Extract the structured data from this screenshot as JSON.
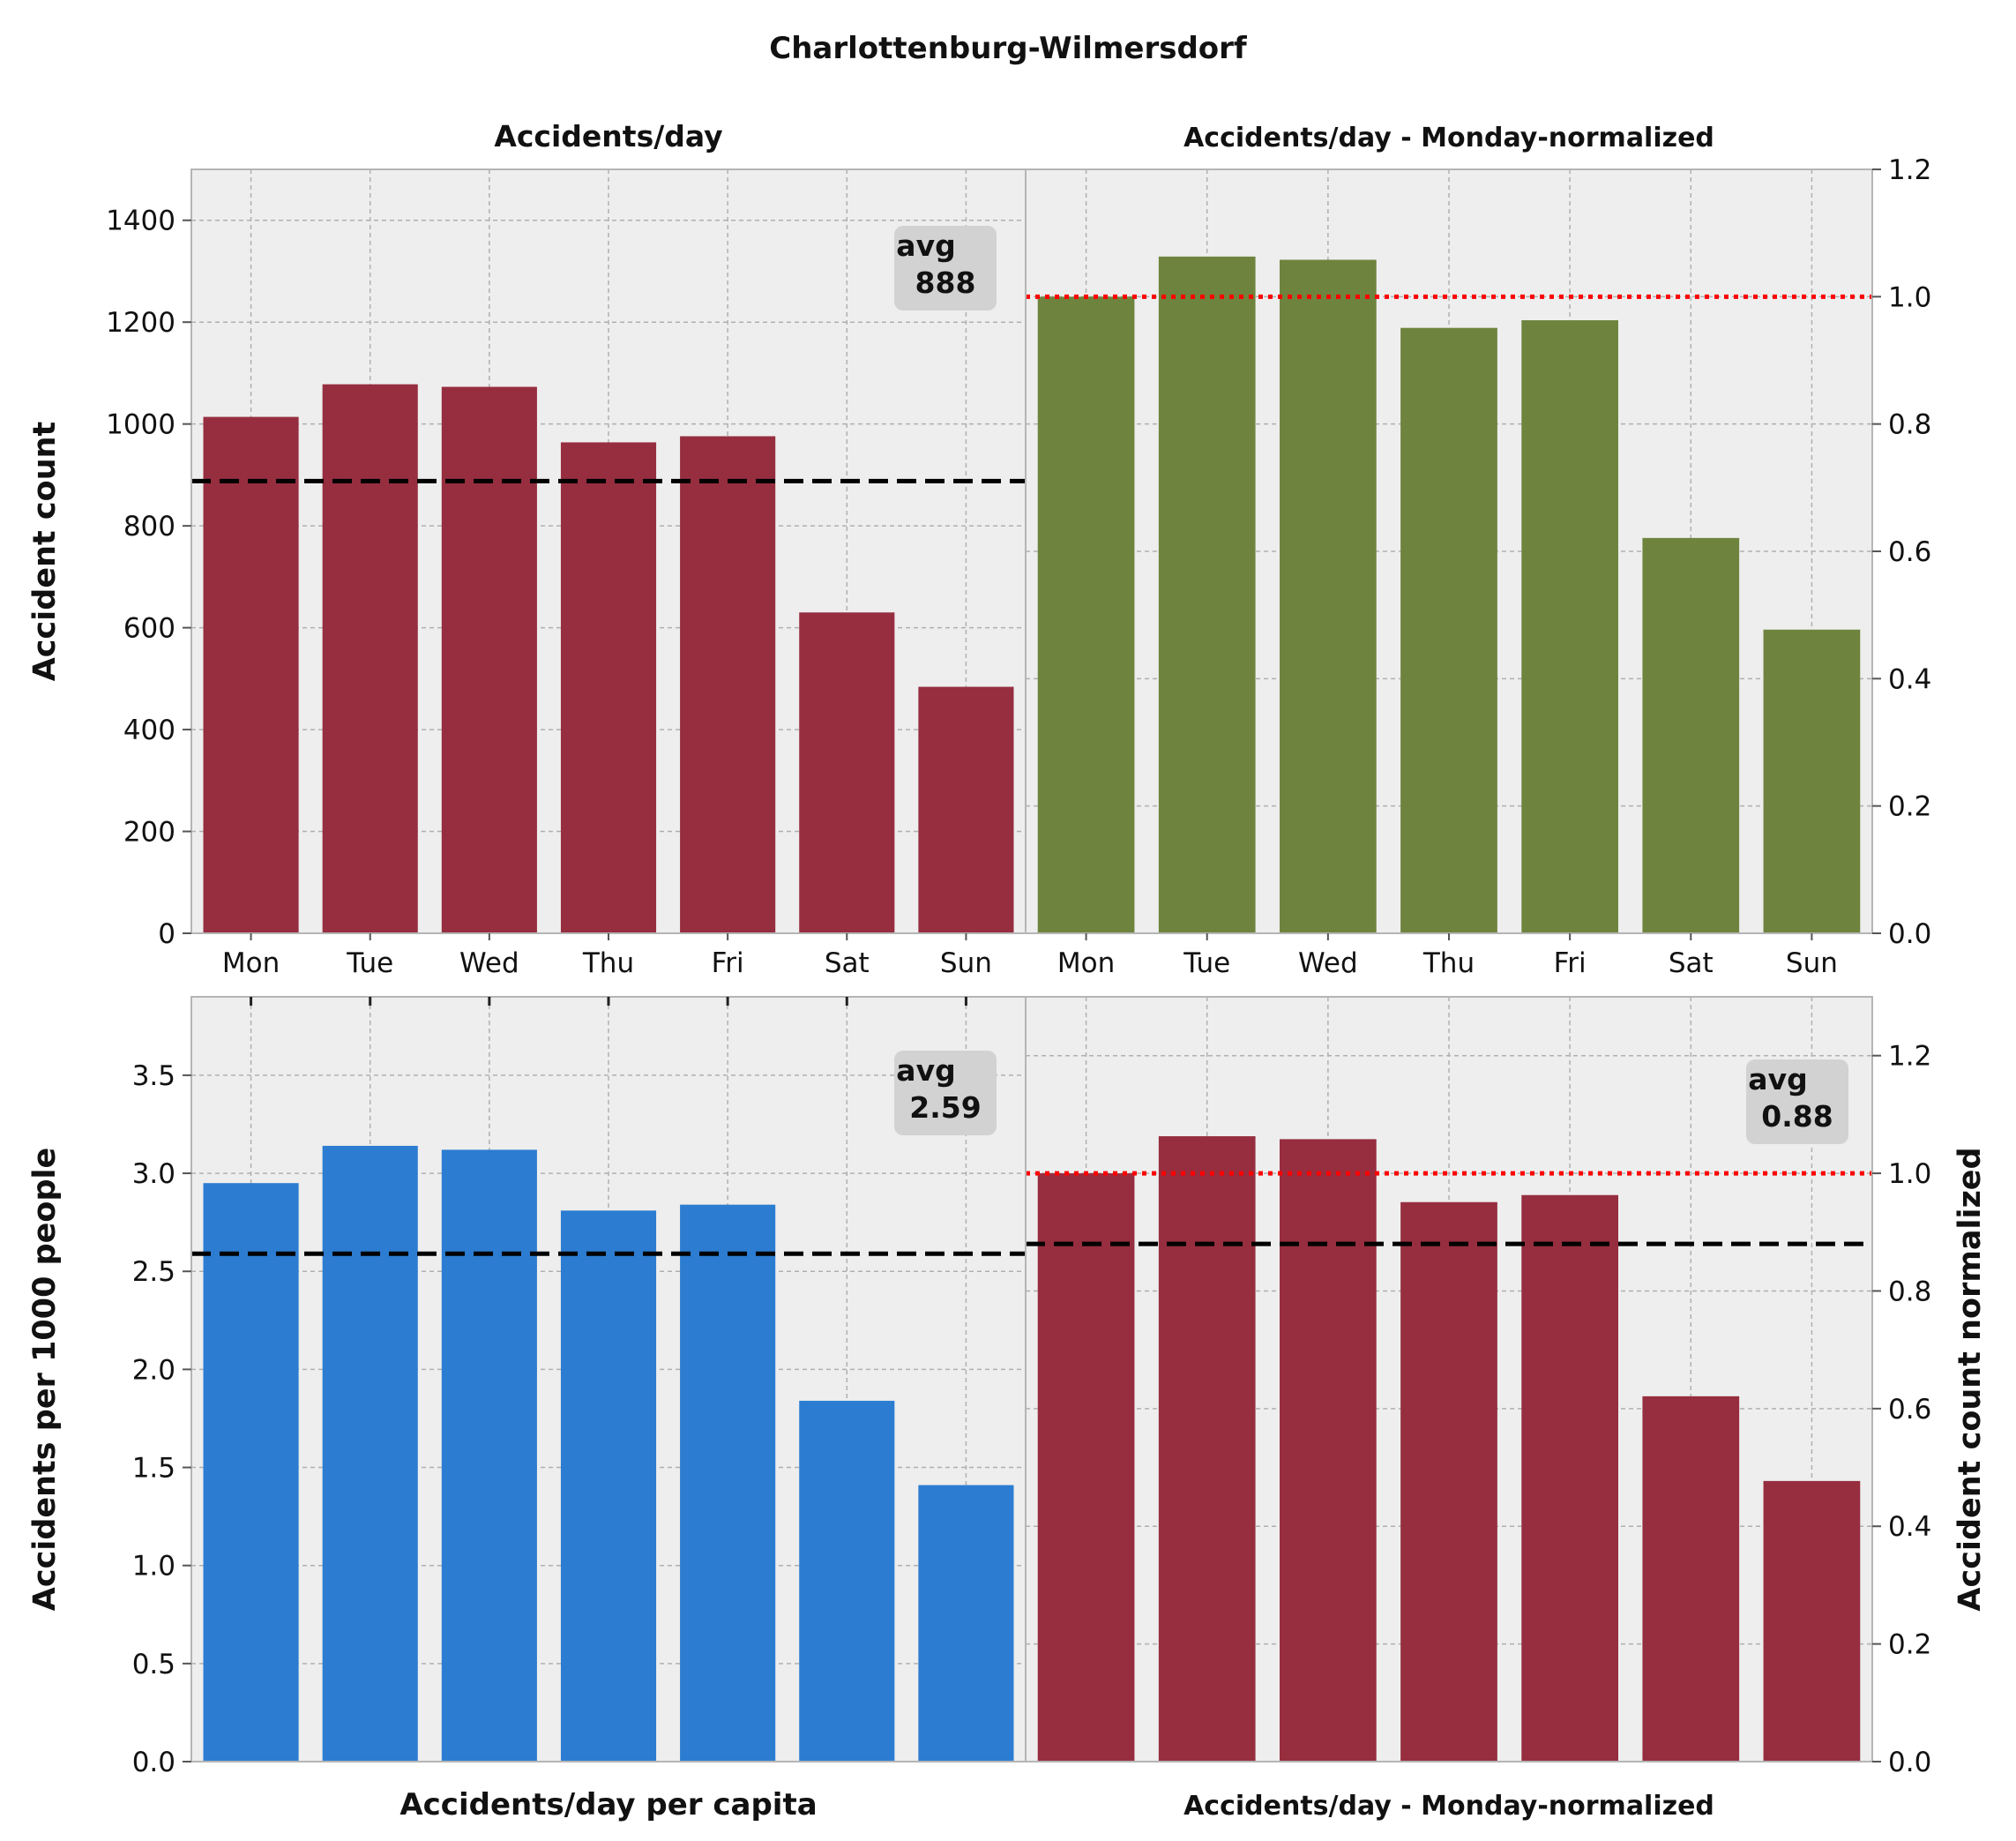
{
  "figure_title": "Charlottenburg-Wilmersdorf",
  "colors": {
    "panel_bg": "#eeeeee",
    "grid": "#b0b0b0",
    "maroon": "#962e3f",
    "olive": "#6e843e",
    "blue": "#2c7dd1",
    "avg_line": "#000000",
    "ref_line": "#ff0000",
    "badge": "#d2d2d2"
  },
  "chart_data": [
    {
      "type": "bar",
      "title": "Accidents/day",
      "ylabel": "Accident count",
      "categories": [
        "Mon",
        "Tue",
        "Wed",
        "Thu",
        "Fri",
        "Sat",
        "Sun"
      ],
      "values": [
        1014,
        1078,
        1073,
        964,
        976,
        630,
        484
      ],
      "ylim": [
        0,
        1500
      ],
      "yticks": [
        0,
        200,
        400,
        600,
        800,
        1000,
        1200,
        1400
      ],
      "ytick_labels": [
        "0",
        "200",
        "400",
        "600",
        "800",
        "1000",
        "1200",
        "1400"
      ],
      "average": 888,
      "avg_label": [
        "avg",
        "888"
      ],
      "grid": true
    },
    {
      "type": "bar",
      "title": "Accidents/day - Monday-normalized",
      "categories": [
        "Mon",
        "Tue",
        "Wed",
        "Thu",
        "Fri",
        "Sat",
        "Sun"
      ],
      "values": [
        1.0,
        1.063,
        1.058,
        0.951,
        0.963,
        0.621,
        0.477
      ],
      "ylim": [
        0,
        1.2
      ],
      "yticks": [
        0,
        0.2,
        0.4,
        0.6,
        0.8,
        1.0,
        1.2
      ],
      "ytick_labels": [
        "0.0",
        "0.2",
        "0.4",
        "0.6",
        "0.8",
        "1.0",
        "1.2"
      ],
      "reference": 1.0,
      "grid": true
    },
    {
      "type": "bar",
      "xlabel": "Accidents/day per capita",
      "ylabel": "Accidents per 1000 people",
      "categories": [
        "Mon",
        "Tue",
        "Wed",
        "Thu",
        "Fri",
        "Sat",
        "Sun"
      ],
      "values": [
        2.95,
        3.14,
        3.12,
        2.81,
        2.84,
        1.84,
        1.41
      ],
      "ylim": [
        0,
        3.9
      ],
      "yticks": [
        0,
        0.5,
        1.0,
        1.5,
        2.0,
        2.5,
        3.0,
        3.5
      ],
      "ytick_labels": [
        "0.0",
        "0.5",
        "1.0",
        "1.5",
        "2.0",
        "2.5",
        "3.0",
        "3.5"
      ],
      "average": 2.59,
      "avg_label": [
        "avg",
        "2.59"
      ],
      "grid": true
    },
    {
      "type": "bar",
      "xlabel": "Accidents/day - Monday-normalized",
      "ylabel": "Accident count normalized",
      "categories": [
        "Mon",
        "Tue",
        "Wed",
        "Thu",
        "Fri",
        "Sat",
        "Sun"
      ],
      "values": [
        1.0,
        1.063,
        1.058,
        0.951,
        0.963,
        0.621,
        0.477
      ],
      "ylim": [
        0,
        1.3
      ],
      "yticks": [
        0,
        0.2,
        0.4,
        0.6,
        0.8,
        1.0,
        1.2
      ],
      "ytick_labels": [
        "0.0",
        "0.2",
        "0.4",
        "0.6",
        "0.8",
        "1.0",
        "1.2"
      ],
      "reference": 1.0,
      "average": 0.88,
      "avg_label": [
        "avg",
        "0.88"
      ],
      "grid": true
    }
  ]
}
